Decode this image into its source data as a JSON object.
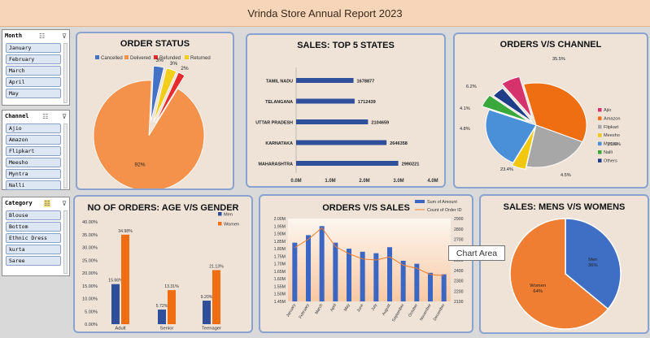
{
  "title": "Vrinda Store Annual Report 2023",
  "slicers": {
    "month": {
      "title": "Month",
      "items": [
        "January",
        "February",
        "March",
        "April",
        "May"
      ]
    },
    "channel": {
      "title": "Channel",
      "items": [
        "Ajio",
        "Amazon",
        "Flipkart",
        "Meesho",
        "Myntra",
        "Nalli"
      ]
    },
    "category": {
      "title": "Category",
      "items": [
        "Blouse",
        "Bottom",
        "Ethnic Dress",
        "kurta",
        "Saree"
      ]
    }
  },
  "tooltip": "Chart Area",
  "cards": {
    "order_status": "ORDER STATUS",
    "top_states": "SALES: TOP 5 STATES",
    "orders_channel": "ORDERS V/S CHANNEL",
    "age_gender": "NO OF ORDERS: AGE V/S GENDER",
    "orders_sales": "ORDERS V/S SALES",
    "mens_womens": "SALES: MENS V/S WOMENS"
  },
  "chart_data": [
    {
      "id": "order_status",
      "type": "pie",
      "title": "ORDER STATUS",
      "legend_position": "top",
      "slices": [
        {
          "name": "Cancelled",
          "value": 3,
          "label": "3%",
          "color": "#4472c4"
        },
        {
          "name": "Delivered",
          "value": 92,
          "label": "92%",
          "color": "#f4914a"
        },
        {
          "name": "Refunded",
          "value": 2,
          "label": "2%",
          "color": "#e52b2b"
        },
        {
          "name": "Returned",
          "value": 3,
          "label": "3%",
          "color": "#f2cd1a"
        }
      ]
    },
    {
      "id": "top_states",
      "type": "bar",
      "orientation": "horizontal",
      "title": "SALES: TOP 5 STATES",
      "categories": [
        "TAMIL NADU",
        "TELANGANA",
        "UTTAR PRADESH",
        "KARNATAKA",
        "MAHARASHTRA"
      ],
      "values": [
        1678877,
        1712439,
        2104659,
        2646358,
        2990221
      ],
      "value_labels": [
        "1678877",
        "1712439",
        "2104659",
        "2646358",
        "2990221"
      ],
      "xlim": [
        0,
        4000000
      ],
      "xticks": [
        "0.0M",
        "1.0M",
        "2.0M",
        "3.0M",
        "4.0M"
      ],
      "color": "#2f4f9a"
    },
    {
      "id": "orders_channel",
      "type": "pie",
      "title": "ORDERS V/S CHANNEL",
      "legend_position": "right",
      "slices": [
        {
          "name": "Ajio",
          "value": 6.2,
          "label": "6.2%",
          "color": "#d6336c"
        },
        {
          "name": "Amazon",
          "value": 35.5,
          "label": "35.5%",
          "color": "#f06e12"
        },
        {
          "name": "Flipkart",
          "value": 21.6,
          "label": "21.6%",
          "color": "#a7a7a7"
        },
        {
          "name": "Meesho",
          "value": 4.5,
          "label": "4.5%",
          "color": "#f2c80f"
        },
        {
          "name": "Myntra",
          "value": 23.4,
          "label": "23.4%",
          "color": "#4a90d9"
        },
        {
          "name": "Nalli",
          "value": 4.8,
          "label": "4.8%",
          "color": "#3aa83a"
        },
        {
          "name": "Others",
          "value": 4.1,
          "label": "4.1%",
          "color": "#1f3c88"
        }
      ]
    },
    {
      "id": "age_gender",
      "type": "bar",
      "title": "NO OF ORDERS: AGE V/S GENDER",
      "categories": [
        "Adult",
        "Senior",
        "Teenager"
      ],
      "series": [
        {
          "name": "Men",
          "values": [
            15.66,
            5.72,
            9.2
          ],
          "labels": [
            "15.66%",
            "5.72%",
            "9.20%"
          ],
          "color": "#2f4f9a"
        },
        {
          "name": "Women",
          "values": [
            34.98,
            13.31,
            21.13
          ],
          "labels": [
            "34.98%",
            "13.31%",
            "21.13%"
          ],
          "color": "#f06e12"
        }
      ],
      "ylim": [
        0,
        40
      ],
      "yticks": [
        "0.00%",
        "5.00%",
        "10.00%",
        "15.00%",
        "20.00%",
        "25.00%",
        "30.00%",
        "35.00%",
        "40.00%"
      ],
      "legend_position": "top-right"
    },
    {
      "id": "orders_sales",
      "type": "bar",
      "title": "ORDERS V/S SALES",
      "categories": [
        "January",
        "February",
        "March",
        "April",
        "May",
        "June",
        "July",
        "August",
        "September",
        "October",
        "November",
        "December"
      ],
      "series": [
        {
          "name": "Sum of Amount",
          "type": "bar",
          "axis": "left",
          "values": [
            1840000,
            1890000,
            1950000,
            1840000,
            1800000,
            1780000,
            1770000,
            1810000,
            1720000,
            1700000,
            1640000,
            1630000
          ],
          "color": "#3c66c4"
        },
        {
          "name": "Count of Order ID",
          "type": "line",
          "axis": "right",
          "values": [
            2620,
            2700,
            2810,
            2630,
            2560,
            2510,
            2500,
            2530,
            2450,
            2420,
            2360,
            2350
          ],
          "color": "#f07c2a"
        }
      ],
      "ylim_left": [
        1450000,
        2000000
      ],
      "yticks_left": [
        "1.45M",
        "1.50M",
        "1.55M",
        "1.60M",
        "1.65M",
        "1.70M",
        "1.75M",
        "1.80M",
        "1.85M",
        "1.90M",
        "1.95M",
        "2.00M"
      ],
      "ylim_right": [
        2100,
        2900
      ],
      "yticks_right": [
        "2100",
        "2200",
        "2300",
        "2400",
        "2500",
        "2600",
        "2700",
        "2800",
        "2900"
      ],
      "legend_position": "top-right"
    },
    {
      "id": "mens_womens",
      "type": "pie",
      "title": "SALES: MENS V/S WOMENS",
      "slices": [
        {
          "name": "Men",
          "value": 36,
          "label": "Men\n36%",
          "color": "#3f6fc4"
        },
        {
          "name": "Women",
          "value": 64,
          "label": "Women\n64%",
          "color": "#ef7d32"
        }
      ]
    }
  ]
}
